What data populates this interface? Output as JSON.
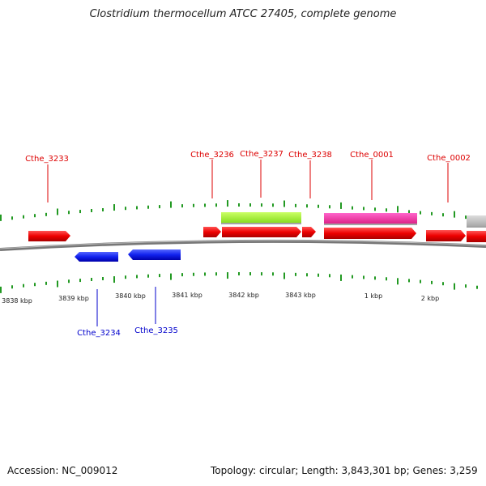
{
  "title": "Clostridium thermocellum ATCC 27405, complete genome",
  "footer": {
    "accession": "Accession: NC_009012",
    "summary": "Topology: circular; Length: 3,843,301 bp; Genes: 3,259"
  },
  "colors": {
    "forward": "#ff0000",
    "reverse": "#0000ee",
    "rna": "#99ee22",
    "pseudo": "#ee3399",
    "other": "#bbbbbb",
    "tick": "#229922",
    "backbone": "#888888"
  },
  "scale_labels": [
    "3838 kbp",
    "3839 kbp",
    "3840 kbp",
    "3841 kbp",
    "3842 kbp",
    "3843 kbp",
    "1 kbp",
    "2 kbp"
  ],
  "gene_labels_top": [
    "Cthe_3233",
    "Cthe_3236",
    "Cthe_3237",
    "Cthe_3238",
    "Cthe_0001",
    "Cthe_0002"
  ],
  "gene_labels_bottom": [
    "Cthe_3234",
    "Cthe_3235"
  ]
}
